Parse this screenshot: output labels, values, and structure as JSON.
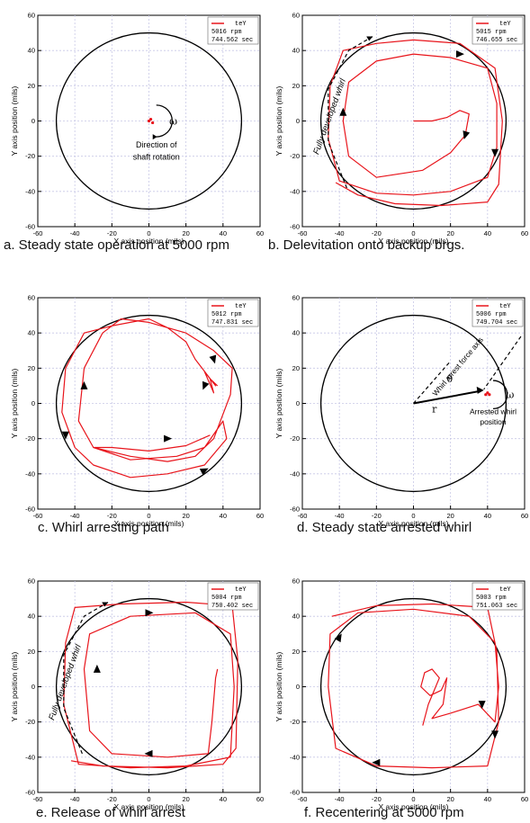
{
  "panels": [
    {
      "caption": "a. Steady state operation at 5000 rpm",
      "legend": "teY",
      "rpm": "5016 rpm",
      "time": "744.562 sec"
    },
    {
      "caption": "b. Delevitation onto backup brgs.",
      "legend": "teY",
      "rpm": "5015 rpm",
      "time": "746.655 sec"
    },
    {
      "caption": "c. Whirl arresting path",
      "legend": "teY",
      "rpm": "5012 rpm",
      "time": "747.831 sec"
    },
    {
      "caption": "d. Steady state arrested whirl",
      "legend": "teY",
      "rpm": "5006 rpm",
      "time": "749.704 sec"
    },
    {
      "caption": "e. Release of whirl arrest",
      "legend": "teY",
      "rpm": "5004 rpm",
      "time": "750.402 sec"
    },
    {
      "caption": "f. Recentering at 5000 rpm",
      "legend": "teY",
      "rpm": "5003 rpm",
      "time": "751.063 sec"
    }
  ],
  "axes": {
    "xlabel": "X axis position (mils)",
    "ylabel": "Y axis position (mils)",
    "xlim": [
      -60,
      60
    ],
    "ylim": [
      -60,
      60
    ],
    "ticks": [
      -60,
      -40,
      -20,
      0,
      20,
      40,
      60
    ],
    "grid": true
  },
  "annotations": {
    "a": {
      "omega": "ω",
      "rotation_line1": "Direction of",
      "rotation_line2": "shaft rotation"
    },
    "b": {
      "whirl": "Fully developed whirl"
    },
    "d": {
      "force_axis": "Whirl arrest force axis",
      "theta": "θ",
      "r": "r",
      "omega": "ω",
      "arrested_line1": "Arrested whirl",
      "arrested_line2": "position"
    },
    "e": {
      "whirl": "Fully developed whirl"
    }
  },
  "colors": {
    "trace": "#e8141b",
    "boundary": "#000000",
    "grid": "#c8c8e6"
  },
  "chart_data": [
    {
      "type": "scatter",
      "panel": "a",
      "boundary_radius": 50,
      "xlim": [
        -60,
        60
      ],
      "ylim": [
        -60,
        60
      ],
      "series": [
        {
          "name": "teY",
          "x": [
            0,
            1,
            2
          ],
          "y": [
            0,
            1,
            -1
          ]
        }
      ]
    },
    {
      "type": "line",
      "panel": "b",
      "boundary_radius": 50,
      "xlim": [
        -60,
        60
      ],
      "ylim": [
        -60,
        60
      ],
      "series": [
        {
          "name": "teY",
          "x": [
            0,
            10,
            18,
            25,
            30,
            28,
            20,
            5,
            -20,
            -35,
            -38,
            -35,
            -20,
            0,
            20,
            40,
            45,
            45,
            40,
            20,
            0,
            -20,
            -40,
            -46,
            -45,
            -38,
            -20,
            0,
            25,
            44,
            48,
            46,
            40,
            15,
            -10,
            -30,
            -42
          ],
          "y": [
            0,
            0,
            2,
            6,
            4,
            -8,
            -18,
            -28,
            -32,
            -20,
            0,
            22,
            34,
            38,
            36,
            30,
            10,
            -15,
            -32,
            -40,
            -42,
            -41,
            -34,
            -10,
            20,
            40,
            44,
            46,
            44,
            30,
            0,
            -36,
            -46,
            -48,
            -47,
            -42,
            -35
          ]
        }
      ]
    },
    {
      "type": "line",
      "panel": "c",
      "boundary_radius": 50,
      "xlim": [
        -60,
        60
      ],
      "ylim": [
        -60,
        60
      ],
      "series": [
        {
          "name": "teY",
          "x": [
            37,
            33,
            35,
            30,
            36,
            25,
            20,
            10,
            0,
            -10,
            -20,
            -35,
            -45,
            -47,
            -40,
            -30,
            -10,
            10,
            30,
            42,
            40,
            30,
            15,
            -10,
            -30,
            -38,
            -35,
            -25,
            -15,
            0,
            20,
            35,
            45,
            44,
            35,
            25,
            10,
            -10,
            -30,
            -20,
            0,
            20,
            33
          ],
          "y": [
            10,
            14,
            6,
            18,
            10,
            25,
            35,
            43,
            48,
            46,
            44,
            40,
            20,
            -5,
            -25,
            -35,
            -42,
            -40,
            -35,
            -20,
            -10,
            -25,
            -30,
            -32,
            -25,
            -10,
            20,
            40,
            48,
            46,
            40,
            30,
            20,
            5,
            -20,
            -30,
            -33,
            -30,
            -25,
            -25,
            -27,
            -24,
            -18
          ]
        }
      ]
    },
    {
      "type": "scatter",
      "panel": "d",
      "boundary_radius": 50,
      "xlim": [
        -60,
        60
      ],
      "ylim": [
        -60,
        60
      ],
      "series": [
        {
          "name": "teY",
          "x": [
            39,
            40,
            41
          ],
          "y": [
            5,
            6,
            5
          ]
        }
      ]
    },
    {
      "type": "line",
      "panel": "e",
      "boundary_radius": 50,
      "xlim": [
        -60,
        60
      ],
      "ylim": [
        -60,
        60
      ],
      "series": [
        {
          "name": "teY",
          "x": [
            37,
            36,
            34,
            32,
            10,
            -20,
            -32,
            -35,
            -32,
            -10,
            25,
            44,
            46,
            44,
            20,
            -10,
            -38,
            -46,
            -45,
            -40,
            -15,
            20,
            45,
            48,
            47,
            40,
            10,
            -25,
            -42
          ],
          "y": [
            10,
            5,
            -20,
            -38,
            -40,
            -38,
            -25,
            10,
            30,
            40,
            42,
            30,
            0,
            -40,
            -45,
            -46,
            -44,
            -10,
            25,
            45,
            47,
            48,
            46,
            15,
            -35,
            -44,
            -46,
            -45,
            -42
          ]
        }
      ]
    },
    {
      "type": "line",
      "panel": "f",
      "boundary_radius": 50,
      "xlim": [
        -60,
        60
      ],
      "ylim": [
        -60,
        60
      ],
      "series": [
        {
          "name": "teY",
          "x": [
            5,
            8,
            12,
            14,
            10,
            6,
            4,
            9,
            15,
            18,
            16,
            10,
            20,
            35,
            44,
            46,
            44,
            30,
            0,
            -30,
            -45,
            -46,
            -42,
            -20,
            10,
            40,
            46,
            45,
            40,
            10,
            -20,
            -44
          ],
          "y": [
            -22,
            -10,
            0,
            5,
            10,
            8,
            0,
            -5,
            -2,
            5,
            -10,
            -18,
            -15,
            -10,
            -20,
            0,
            25,
            40,
            44,
            42,
            30,
            0,
            -35,
            -45,
            -46,
            -45,
            -20,
            20,
            45,
            47,
            46,
            40
          ]
        }
      ]
    }
  ]
}
